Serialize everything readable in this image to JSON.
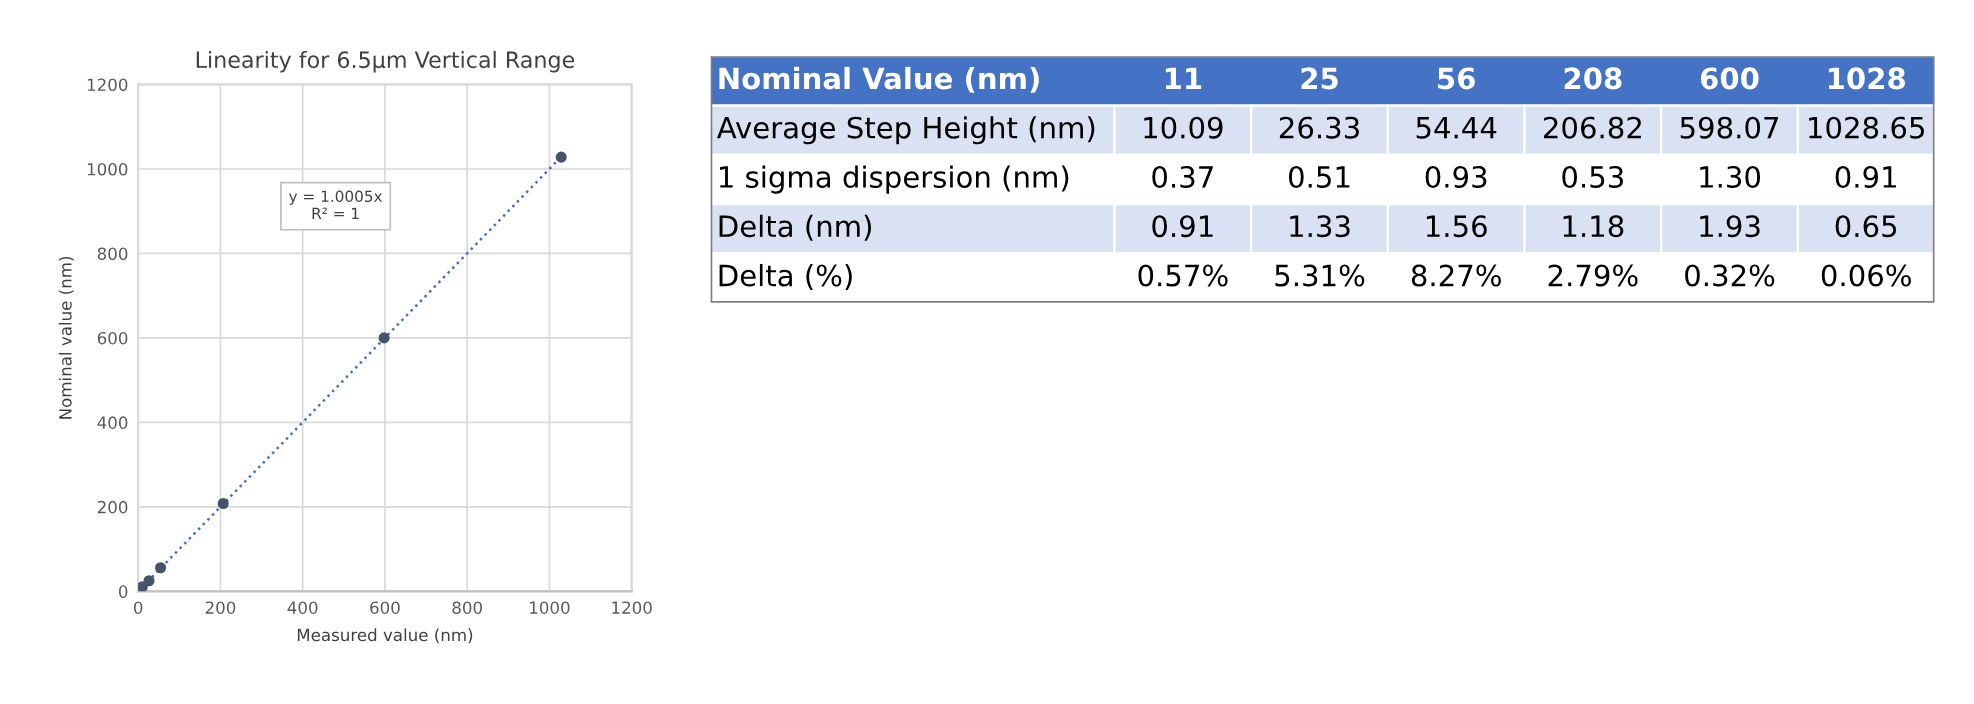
{
  "chart_data": [
    {
      "type": "scatter",
      "title": "Linearity for 6.5µm Vertical Range",
      "xlabel": "Measured value (nm)",
      "ylabel": "Nominal value (nm)",
      "series": [
        {
          "type": "scatter",
          "color": "#44546a",
          "marker": "circle",
          "x": [
            10.09,
            26.33,
            54.44,
            206.82,
            598.07,
            1028.65
          ],
          "values": [
            11,
            25,
            56,
            208,
            600,
            1028
          ]
        },
        {
          "type": "line",
          "color": "#4472c4",
          "line_style": "dotted",
          "marker": "none",
          "x": [
            0,
            1028.65
          ],
          "values": [
            0,
            1029
          ]
        }
      ],
      "annotations": [
        "y = 1.0005x\nR² = 1"
      ],
      "xlim": [
        0,
        1200
      ],
      "ylim": [
        0,
        1200
      ],
      "xticks": [
        0,
        200,
        400,
        600,
        800,
        1000,
        1200
      ],
      "yticks": [
        0,
        200,
        400,
        600,
        800,
        1000,
        1200
      ],
      "grid": true,
      "legend": false
    },
    {
      "type": "other",
      "title": "Nominal Value (nm)",
      "categories": [
        "11",
        "25",
        "56",
        "208",
        "600",
        "1028"
      ],
      "y_categories": [
        "Average Step Height (nm)",
        "1 sigma dispersion (nm)",
        "Delta (nm)",
        "Delta (%)"
      ],
      "cell_labels": [
        [
          "10.09",
          "26.33",
          "54.44",
          "206.82",
          "598.07",
          "1028.65"
        ],
        [
          "0.37",
          "0.51",
          "0.93",
          "0.53",
          "1.30",
          "0.91"
        ],
        [
          "0.91",
          "1.33",
          "1.56",
          "1.18",
          "1.93",
          "0.65"
        ],
        [
          "0.57%",
          "5.31%",
          "8.27%",
          "2.79%",
          "0.32%",
          "0.06%"
        ]
      ]
    }
  ]
}
